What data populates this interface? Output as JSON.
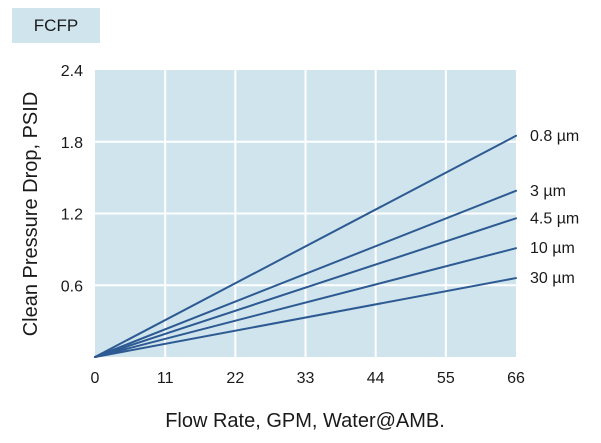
{
  "colors": {
    "plot_background": "#cfe4ec",
    "tag_background": "#cfe4ec",
    "gridline": "#ffffff",
    "series_line": "#2d5a93"
  },
  "chart_data": {
    "type": "line",
    "tag": "FCFP",
    "xlabel": "Flow Rate, GPM, Water@AMB.",
    "ylabel": "Clean Pressure Drop, PSID",
    "xlim": [
      0,
      66
    ],
    "ylim": [
      0,
      2.4
    ],
    "x_ticks": [
      "0",
      "11",
      "22",
      "33",
      "44",
      "55",
      "66"
    ],
    "y_ticks": [
      "0.6",
      "1.2",
      "1.8",
      "2.4"
    ],
    "grid": true,
    "series": [
      {
        "name": "0.8 µm",
        "x": [
          0,
          66
        ],
        "y": [
          0,
          1.85
        ]
      },
      {
        "name": "3 µm",
        "x": [
          0,
          66
        ],
        "y": [
          0,
          1.39
        ]
      },
      {
        "name": "4.5 µm",
        "x": [
          0,
          66
        ],
        "y": [
          0,
          1.16
        ]
      },
      {
        "name": "10 µm",
        "x": [
          0,
          66
        ],
        "y": [
          0,
          0.91
        ]
      },
      {
        "name": "30 µm",
        "x": [
          0,
          66
        ],
        "y": [
          0,
          0.66
        ]
      }
    ]
  }
}
